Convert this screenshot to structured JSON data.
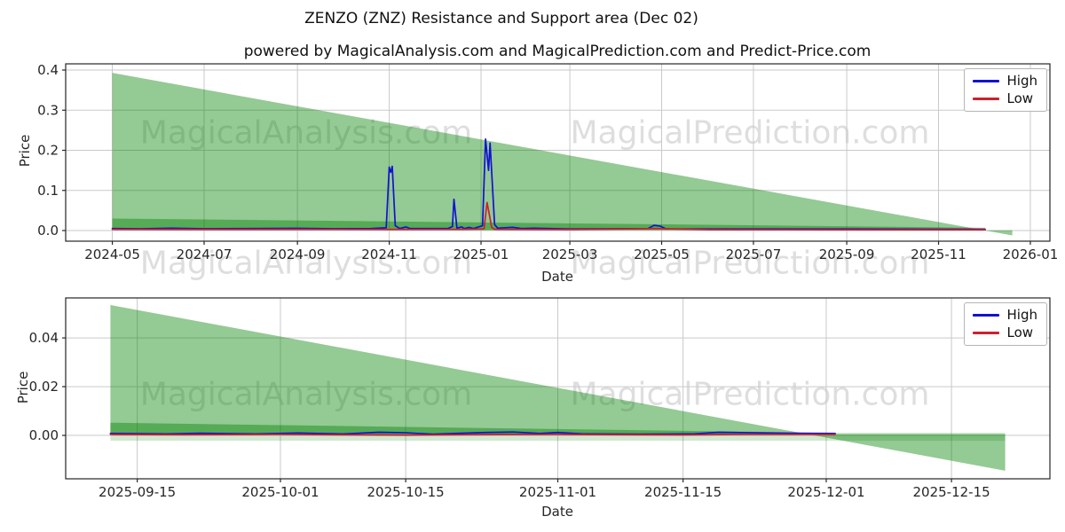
{
  "title": "ZENZO (ZNZ) Resistance and Support area (Dec 02)",
  "subtitle": "powered by MagicalAnalysis.com and MagicalPrediction.com and Predict-Price.com",
  "watermarks": {
    "left": "MagicalAnalysis.com",
    "right": "MagicalPrediction.com"
  },
  "colors": {
    "high": "#1212d0",
    "low": "#cf1f2c",
    "area_green": "#008000",
    "grid": "#c9c9c9",
    "spine": "#262626",
    "tick_text": "#262626"
  },
  "chart_data": [
    {
      "type": "line",
      "title": "",
      "xlabel": "Date",
      "ylabel": "Price",
      "grid": true,
      "legend": [
        "High",
        "Low"
      ],
      "legend_position": "upper right",
      "x_domain": [
        "2024-03-31",
        "2026-01-14"
      ],
      "y_domain": [
        -0.0265,
        0.4155
      ],
      "x_ticks": [
        {
          "label": "2024-05",
          "date": "2024-05-01"
        },
        {
          "label": "2024-07",
          "date": "2024-07-01"
        },
        {
          "label": "2024-09",
          "date": "2024-09-01"
        },
        {
          "label": "2024-11",
          "date": "2024-11-01"
        },
        {
          "label": "2025-01",
          "date": "2025-01-01"
        },
        {
          "label": "2025-03",
          "date": "2025-03-01"
        },
        {
          "label": "2025-05",
          "date": "2025-05-01"
        },
        {
          "label": "2025-07",
          "date": "2025-07-01"
        },
        {
          "label": "2025-09",
          "date": "2025-09-01"
        },
        {
          "label": "2025-11",
          "date": "2025-11-01"
        },
        {
          "label": "2026-01",
          "date": "2026-01-01"
        }
      ],
      "y_ticks": [
        {
          "label": "0.0",
          "value": 0.0
        },
        {
          "label": "0.1",
          "value": 0.1
        },
        {
          "label": "0.2",
          "value": 0.2
        },
        {
          "label": "0.3",
          "value": 0.3
        },
        {
          "label": "0.4",
          "value": 0.4
        }
      ],
      "areas": [
        {
          "name": "resistance-support-wedge",
          "opacity": 0.42,
          "top": [
            [
              "2024-05-01",
              0.393
            ],
            [
              "2025-12-20",
              -0.012
            ]
          ],
          "bottom": [
            [
              "2024-05-01",
              0.0005
            ],
            [
              "2025-12-20",
              0.0005
            ]
          ]
        },
        {
          "name": "support-band",
          "opacity": 0.42,
          "top": [
            [
              "2024-05-01",
              0.03
            ],
            [
              "2025-12-02",
              0.007
            ]
          ],
          "bottom": [
            [
              "2024-05-01",
              0.0015
            ],
            [
              "2025-12-02",
              0.0015
            ]
          ]
        }
      ],
      "series": [
        {
          "name": "High",
          "color_key": "high",
          "points": [
            [
              "2024-05-01",
              0.005
            ],
            [
              "2024-05-20",
              0.0045
            ],
            [
              "2024-06-10",
              0.006
            ],
            [
              "2024-07-01",
              0.0045
            ],
            [
              "2024-08-01",
              0.005
            ],
            [
              "2024-09-01",
              0.0055
            ],
            [
              "2024-09-25",
              0.0045
            ],
            [
              "2024-10-20",
              0.005
            ],
            [
              "2024-10-30",
              0.007
            ],
            [
              "2024-11-01",
              0.158
            ],
            [
              "2024-11-02",
              0.145
            ],
            [
              "2024-11-03",
              0.16
            ],
            [
              "2024-11-05",
              0.012
            ],
            [
              "2024-11-08",
              0.005
            ],
            [
              "2024-11-12",
              0.009
            ],
            [
              "2024-11-15",
              0.005
            ],
            [
              "2024-12-10",
              0.005
            ],
            [
              "2024-12-13",
              0.01
            ],
            [
              "2024-12-14",
              0.078
            ],
            [
              "2024-12-16",
              0.006
            ],
            [
              "2024-12-19",
              0.009
            ],
            [
              "2024-12-21",
              0.005
            ],
            [
              "2024-12-24",
              0.008
            ],
            [
              "2024-12-27",
              0.005
            ],
            [
              "2025-01-02",
              0.012
            ],
            [
              "2025-01-04",
              0.228
            ],
            [
              "2025-01-06",
              0.15
            ],
            [
              "2025-01-07",
              0.218
            ],
            [
              "2025-01-10",
              0.015
            ],
            [
              "2025-01-12",
              0.006
            ],
            [
              "2025-01-22",
              0.008
            ],
            [
              "2025-01-28",
              0.005
            ],
            [
              "2025-02-05",
              0.006
            ],
            [
              "2025-03-01",
              0.004
            ],
            [
              "2025-04-22",
              0.005
            ],
            [
              "2025-04-26",
              0.013
            ],
            [
              "2025-04-30",
              0.011
            ],
            [
              "2025-05-04",
              0.004
            ],
            [
              "2025-07-01",
              0.004
            ],
            [
              "2025-09-01",
              0.004
            ],
            [
              "2025-11-01",
              0.0035
            ],
            [
              "2025-12-02",
              0.003
            ]
          ]
        },
        {
          "name": "Low",
          "color_key": "low",
          "points": [
            [
              "2024-05-01",
              0.003
            ],
            [
              "2024-07-01",
              0.0028
            ],
            [
              "2024-09-01",
              0.003
            ],
            [
              "2024-11-01",
              0.0028
            ],
            [
              "2024-12-20",
              0.003
            ],
            [
              "2025-01-03",
              0.004
            ],
            [
              "2025-01-05",
              0.07
            ],
            [
              "2025-01-07",
              0.03
            ],
            [
              "2025-01-08",
              0.008
            ],
            [
              "2025-01-10",
              0.003
            ],
            [
              "2025-03-01",
              0.0025
            ],
            [
              "2025-04-27",
              0.005
            ],
            [
              "2025-06-01",
              0.0022
            ],
            [
              "2025-09-01",
              0.002
            ],
            [
              "2025-12-02",
              0.002
            ]
          ]
        }
      ]
    },
    {
      "type": "line",
      "title": "",
      "xlabel": "Date",
      "ylabel": "Price",
      "grid": true,
      "legend": [
        "High",
        "Low"
      ],
      "legend_position": "upper right",
      "x_domain": [
        "2025-09-07",
        "2025-12-26"
      ],
      "y_domain": [
        -0.0178,
        0.0564
      ],
      "x_ticks": [
        {
          "label": "2025-09-15",
          "date": "2025-09-15"
        },
        {
          "label": "2025-10-01",
          "date": "2025-10-01"
        },
        {
          "label": "2025-10-15",
          "date": "2025-10-15"
        },
        {
          "label": "2025-11-01",
          "date": "2025-11-01"
        },
        {
          "label": "2025-11-15",
          "date": "2025-11-15"
        },
        {
          "label": "2025-12-01",
          "date": "2025-12-01"
        },
        {
          "label": "2025-12-15",
          "date": "2025-12-15"
        }
      ],
      "y_ticks": [
        {
          "label": "0.00",
          "value": 0.0
        },
        {
          "label": "0.02",
          "value": 0.02
        },
        {
          "label": "0.04",
          "value": 0.04
        }
      ],
      "areas": [
        {
          "name": "resistance-support-wedge",
          "opacity": 0.42,
          "top": [
            [
              "2025-09-12",
              0.0535
            ],
            [
              "2025-12-21",
              -0.0145
            ]
          ],
          "bottom": [
            [
              "2025-09-12",
              0.0005
            ],
            [
              "2025-12-21",
              0.0005
            ]
          ]
        },
        {
          "name": "support-band",
          "opacity": 0.42,
          "top": [
            [
              "2025-09-12",
              0.0052
            ],
            [
              "2025-12-02",
              0.001
            ]
          ],
          "bottom": [
            [
              "2025-09-12",
              0.0004
            ],
            [
              "2025-12-02",
              0.0004
            ]
          ]
        },
        {
          "name": "outer-pale-band",
          "opacity": 0.18,
          "top": [
            [
              "2025-09-12",
              0.0011
            ],
            [
              "2025-12-21",
              0.0011
            ]
          ],
          "bottom": [
            [
              "2025-09-12",
              -0.0022
            ],
            [
              "2025-12-21",
              -0.0022
            ]
          ]
        }
      ],
      "series": [
        {
          "name": "High",
          "color_key": "high",
          "points": [
            [
              "2025-09-12",
              0.0008
            ],
            [
              "2025-09-18",
              0.0006
            ],
            [
              "2025-09-22",
              0.0009
            ],
            [
              "2025-09-28",
              0.0006
            ],
            [
              "2025-10-03",
              0.001
            ],
            [
              "2025-10-08",
              0.0006
            ],
            [
              "2025-10-12",
              0.0013
            ],
            [
              "2025-10-15",
              0.0011
            ],
            [
              "2025-10-18",
              0.0005
            ],
            [
              "2025-10-24",
              0.0012
            ],
            [
              "2025-10-27",
              0.0014
            ],
            [
              "2025-10-30",
              0.0008
            ],
            [
              "2025-11-01",
              0.0012
            ],
            [
              "2025-11-04",
              0.0006
            ],
            [
              "2025-11-10",
              0.0005
            ],
            [
              "2025-11-16",
              0.0006
            ],
            [
              "2025-11-19",
              0.0013
            ],
            [
              "2025-11-23",
              0.0011
            ],
            [
              "2025-11-27",
              0.0009
            ],
            [
              "2025-12-02",
              0.0008
            ]
          ]
        },
        {
          "name": "Low",
          "color_key": "low",
          "points": [
            [
              "2025-09-12",
              0.0004
            ],
            [
              "2025-09-20",
              0.0003
            ],
            [
              "2025-10-01",
              0.0004
            ],
            [
              "2025-10-10",
              0.0002
            ],
            [
              "2025-10-15",
              0.0001
            ],
            [
              "2025-10-22",
              0.0003
            ],
            [
              "2025-11-01",
              0.0004
            ],
            [
              "2025-11-08",
              0.0003
            ],
            [
              "2025-11-15",
              0.0002
            ],
            [
              "2025-11-22",
              0.0004
            ],
            [
              "2025-12-02",
              0.0004
            ]
          ]
        }
      ]
    }
  ]
}
